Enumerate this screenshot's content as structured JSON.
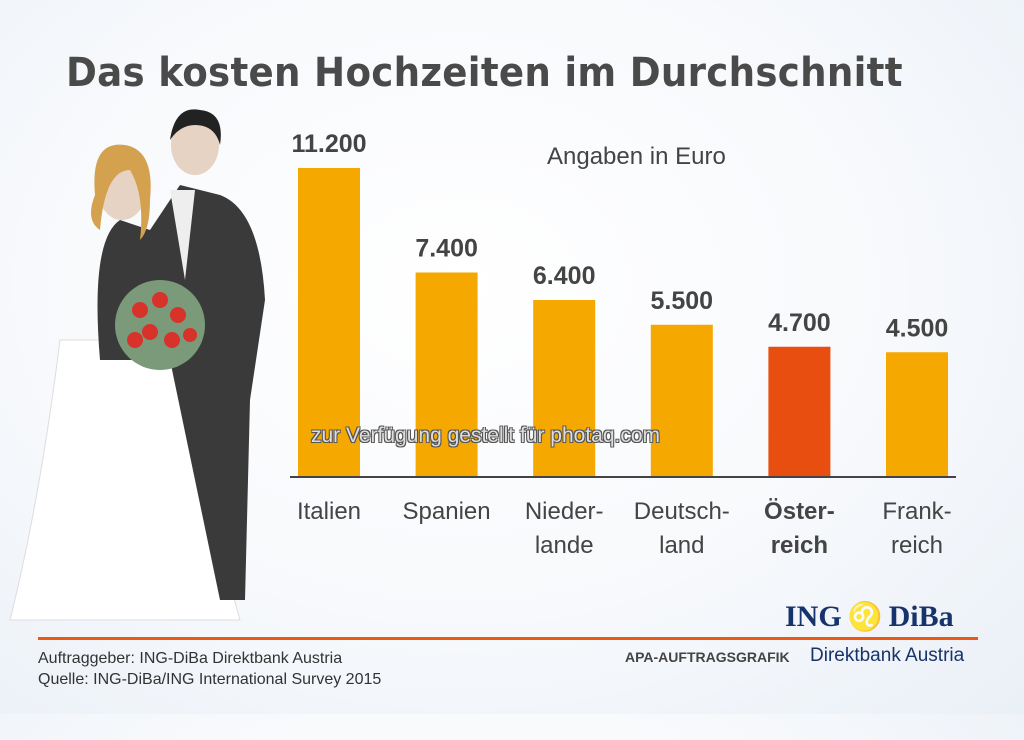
{
  "title": "Das kosten Hochzeiten im Durchschnitt",
  "unit_note": "Angaben in Euro",
  "watermark": "zur Verfügung gestellt für photaq.com",
  "footer": {
    "client": "Auftraggeber: ING-DiBa Direktbank Austria",
    "source": "Quelle: ING-DiBa/ING International Survey 2015",
    "apa": "APA-AUFTRAGSGRAFIK",
    "logo_left": "ING",
    "logo_right": "DiBa",
    "logo_sub": "Direktbank Austria"
  },
  "colors": {
    "bar": "#f5a800",
    "highlight": "#e84e10",
    "accent": "#ea5a14",
    "brand": "#17336b"
  },
  "chart_data": {
    "type": "bar",
    "title": "Das kosten Hochzeiten im Durchschnitt",
    "ylabel": "Angaben in Euro",
    "categories": [
      [
        "Italien"
      ],
      [
        "Spanien"
      ],
      [
        "Nieder-",
        "lande"
      ],
      [
        "Deutsch-",
        "land"
      ],
      [
        "Öster-",
        "reich"
      ],
      [
        "Frank-",
        "reich"
      ]
    ],
    "values": [
      11200,
      7400,
      6400,
      5500,
      4700,
      4500
    ],
    "value_labels": [
      "11.200",
      "7.400",
      "6.400",
      "5.500",
      "4.700",
      "4.500"
    ],
    "highlight_index": 4,
    "ylim": [
      0,
      11200
    ],
    "grid": false
  }
}
